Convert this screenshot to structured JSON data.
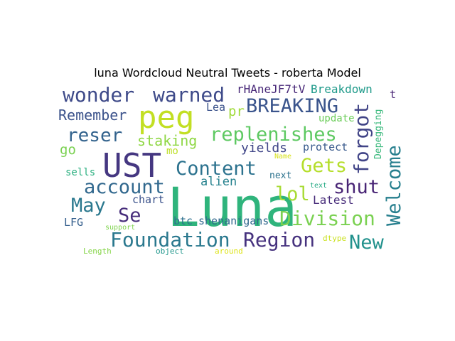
{
  "title": "luna Wordcloud Neutral Tweets - roberta Model",
  "words": [
    {
      "text": "Luna",
      "color": "#2fb47c"
    },
    {
      "text": "UST",
      "color": "#453781"
    },
    {
      "text": "peg",
      "color": "#c2df23"
    },
    {
      "text": "wonder",
      "color": "#3e4a89"
    },
    {
      "text": "warned",
      "color": "#3e4a89"
    },
    {
      "text": "BREAKING",
      "color": "#3a548c"
    },
    {
      "text": "replenishes",
      "color": "#5ec962"
    },
    {
      "text": "Content",
      "color": "#2c728e"
    },
    {
      "text": "Gets",
      "color": "#b5de2b"
    },
    {
      "text": "account",
      "color": "#31688e"
    },
    {
      "text": "reser",
      "color": "#33638d"
    },
    {
      "text": "Remember",
      "color": "#3b528b"
    },
    {
      "text": "staking",
      "color": "#8fd744"
    },
    {
      "text": "forgot",
      "color": "#414487"
    },
    {
      "text": "Welcome",
      "color": "#277f8e"
    },
    {
      "text": "shut",
      "color": "#482475"
    },
    {
      "text": "lol",
      "color": "#a8db34"
    },
    {
      "text": "May",
      "color": "#2a788e"
    },
    {
      "text": "Se",
      "color": "#472d7b"
    },
    {
      "text": "Division",
      "color": "#7ad151"
    },
    {
      "text": "Foundation",
      "color": "#2a788e"
    },
    {
      "text": "Region",
      "color": "#46327e"
    },
    {
      "text": "New",
      "color": "#21918c"
    },
    {
      "text": "yields",
      "color": "#404688"
    },
    {
      "text": "protect",
      "color": "#38598c"
    },
    {
      "text": "alien",
      "color": "#26828e"
    },
    {
      "text": "rHAneJF7tV",
      "color": "#482878"
    },
    {
      "text": "Breakdown",
      "color": "#1f9a8a"
    },
    {
      "text": "Lea",
      "color": "#3b528b"
    },
    {
      "text": "pr",
      "color": "#a0da39"
    },
    {
      "text": "update",
      "color": "#6ccd5a"
    },
    {
      "text": "go",
      "color": "#7ad151"
    },
    {
      "text": "mo",
      "color": "#bddf26"
    },
    {
      "text": "sells",
      "color": "#29af7f"
    },
    {
      "text": "next",
      "color": "#2c728e"
    },
    {
      "text": "Name",
      "color": "#d8e219"
    },
    {
      "text": "text",
      "color": "#23a983"
    },
    {
      "text": "chart",
      "color": "#3b528b"
    },
    {
      "text": "Latest",
      "color": "#472c7a"
    },
    {
      "text": "LFG",
      "color": "#355f8d"
    },
    {
      "text": "btc",
      "color": "#2d708e"
    },
    {
      "text": "shenanigans",
      "color": "#31688e"
    },
    {
      "text": "support",
      "color": "#7fd34e"
    },
    {
      "text": "Length",
      "color": "#86d549"
    },
    {
      "text": "object",
      "color": "#1f968b"
    },
    {
      "text": "around",
      "color": "#dde318"
    },
    {
      "text": "dtype",
      "color": "#cae11f"
    },
    {
      "text": "Depegging",
      "color": "#35b779"
    },
    {
      "text": "t",
      "color": "#482475"
    }
  ]
}
